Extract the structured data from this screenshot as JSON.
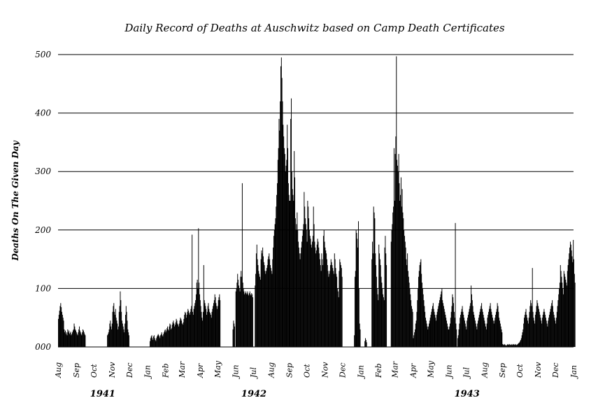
{
  "chart_data": {
    "type": "bar",
    "title": "Daily Record of Deaths at Auschwitz based on Camp Death Certificates",
    "ylabel": "Deaths On The Given Day",
    "xlabel": "",
    "ylim": [
      0,
      500
    ],
    "y_ticks": [
      "000",
      "100",
      "200",
      "300",
      "400",
      "500"
    ],
    "grid": true,
    "month_labels": [
      "Aug",
      "Sep",
      "Oct",
      "Nov",
      "Dec",
      "Jan",
      "Feb",
      "Mar",
      "Apr",
      "May",
      "Jun",
      "Jul",
      "Aug",
      "Sep",
      "Oct",
      "Nov",
      "Dec",
      "Jan",
      "Feb",
      "Mar",
      "Apr",
      "May",
      "Jun",
      "Jul",
      "Aug",
      "Sep",
      "Oct",
      "Nov",
      "Dec",
      "Jan"
    ],
    "year_labels": [
      "1941",
      "1942",
      "1943"
    ],
    "x_start": "1941-08",
    "x_end": "1944-01",
    "series": [
      {
        "segments": [
          {
            "start": "1941-08-01",
            "end": "1941-09-16",
            "values": [
              48,
              55,
              62,
              70,
              75,
              68,
              60,
              55,
              50,
              45,
              30,
              25,
              28,
              22,
              25,
              20,
              30,
              25,
              28,
              22,
              24,
              26,
              20,
              22,
              25,
              28,
              30,
              40,
              35,
              30,
              28,
              25,
              22,
              20,
              25,
              30,
              35,
              28,
              25,
              22,
              20,
              25,
              30,
              28,
              25,
              22,
              20
            ]
          },
          {
            "start": "1941-10-24",
            "end": "1941-11-30",
            "values": [
              20,
              22,
              25,
              30,
              40,
              45,
              35,
              30,
              40,
              60,
              70,
              75,
              60,
              55,
              65,
              50,
              45,
              40,
              30,
              35,
              60,
              70,
              95,
              80,
              60,
              45,
              40,
              35,
              30,
              25,
              40,
              55,
              70,
              60,
              45,
              30,
              25,
              20
            ]
          },
          {
            "start": "1942-01-05",
            "end": "1942-04-30",
            "values": [
              10,
              15,
              18,
              20,
              15,
              12,
              18,
              20,
              15,
              12,
              10,
              15,
              18,
              20,
              22,
              20,
              18,
              15,
              20,
              22,
              25,
              20,
              18,
              22,
              25,
              28,
              30,
              25,
              28,
              32,
              35,
              30,
              28,
              35,
              40,
              38,
              30,
              32,
              38,
              42,
              45,
              40,
              35,
              38,
              42,
              48,
              45,
              40,
              38,
              35,
              40,
              45,
              50,
              48,
              45,
              40,
              38,
              42,
              48,
              55,
              60,
              58,
              50,
              55,
              60,
              65,
              62,
              58,
              55,
              60,
              65,
              70,
              192,
              60,
              55,
              65,
              70,
              75,
              80,
              90,
              110,
              115,
              100,
              203,
              110,
              90,
              80,
              70,
              60,
              50,
              45,
              60,
              140,
              80,
              75,
              70,
              65,
              55,
              60,
              70,
              75,
              65,
              60,
              58,
              55,
              50,
              60,
              65,
              70,
              75,
              80,
              90,
              85,
              75,
              70,
              65,
              70,
              80,
              85,
              90,
              80
            ]
          },
          {
            "start": "1942-05-27",
            "end": "1942-05-30",
            "values": [
              30,
              45,
              40,
              35
            ]
          },
          {
            "start": "1942-06-01",
            "end": "1942-06-30",
            "values": [
              95,
              100,
              110,
              125,
              115,
              105,
              100,
              95,
              120,
              130,
              120,
              280,
              110,
              100,
              95,
              90,
              92,
              95,
              90,
              92,
              95,
              90,
              88,
              92,
              95,
              90,
              88,
              92,
              90,
              85
            ]
          },
          {
            "start": "1942-07-04",
            "end": "1942-08-31",
            "values": [
              105,
              125,
              160,
              175,
              150,
              140,
              130,
              125,
              120,
              115,
              150,
              165,
              160,
              170,
              155,
              145,
              140,
              130,
              125,
              130,
              135,
              140,
              150,
              155,
              160,
              150,
              140,
              135,
              130,
              125,
              150,
              170,
              190,
              200,
              210,
              220,
              240,
              260,
              280,
              320,
              340,
              390,
              370,
              420,
              480,
              495,
              460,
              420,
              380,
              360,
              340,
              330,
              300,
              310,
              320,
              380,
              340,
              280,
              260,
              250
            ]
          },
          {
            "start": "1942-09-01",
            "end": "1942-11-30",
            "values": [
              230,
              250,
              390,
              425,
              300,
              270,
              260,
              250,
              335,
              290,
              220,
              200,
              210,
              230,
              200,
              180,
              170,
              160,
              150,
              160,
              170,
              180,
              190,
              200,
              210,
              265,
              240,
              220,
              210,
              200,
              180,
              250,
              240,
              220,
              200,
              190,
              185,
              175,
              170,
              180,
              190,
              240,
              210,
              180,
              170,
              160,
              165,
              175,
              185,
              180,
              170,
              160,
              150,
              140,
              130,
              160,
              150,
              140,
              190,
              200,
              180,
              170,
              165,
              160,
              150,
              140,
              130,
              120,
              125,
              130,
              140,
              150,
              145,
              140,
              135,
              130,
              125,
              160,
              150,
              135,
              125,
              120,
              100,
              95,
              85,
              130,
              150,
              145,
              140,
              135,
              120
            ]
          },
          {
            "start": "1942-12-21",
            "end": "1942-12-31",
            "values": [
              20,
              120,
              130,
              200,
              195,
              185,
              170,
              215,
              100,
              40,
              30
            ]
          },
          {
            "start": "1943-01-08",
            "end": "1943-01-11",
            "values": [
              10,
              15,
              12,
              8
            ]
          },
          {
            "start": "1943-01-20",
            "end": "1943-02-14",
            "values": [
              150,
              180,
              160,
              240,
              230,
              220,
              160,
              140,
              120,
              100,
              90,
              80,
              175,
              160,
              150,
              140,
              120,
              110,
              100,
              90,
              85,
              80,
              170,
              190,
              160,
              140
            ]
          },
          {
            "start": "1943-02-22",
            "end": "1943-03-31",
            "values": [
              180,
              200,
              210,
              230,
              240,
              340,
              250,
              330,
              360,
              497,
              320,
              310,
              300,
              330,
              280,
              250,
              260,
              290,
              240,
              270,
              230,
              220,
              200,
              190,
              180,
              170,
              150,
              140,
              160,
              130,
              120,
              110,
              100,
              90,
              80,
              70,
              65,
              60
            ]
          },
          {
            "start": "1943-04-01",
            "end": "1943-05-31",
            "values": [
              15,
              20,
              25,
              30,
              40,
              45,
              60,
              80,
              100,
              120,
              130,
              140,
              145,
              150,
              125,
              110,
              100,
              90,
              80,
              70,
              60,
              50,
              45,
              40,
              35,
              30,
              35,
              40,
              45,
              50,
              55,
              60,
              65,
              70,
              75,
              65,
              60,
              55,
              50,
              45,
              55,
              60,
              65,
              70,
              75,
              80,
              85,
              90,
              95,
              100,
              80,
              75,
              70,
              65,
              60,
              55,
              50,
              45,
              40,
              35,
              30
            ]
          },
          {
            "start": "1943-06-01",
            "end": "1943-06-14",
            "values": [
              30,
              35,
              40,
              50,
              60,
              70,
              90,
              85,
              75,
              60,
              50,
              212,
              40,
              30
            ]
          },
          {
            "start": "1943-06-16",
            "end": "1943-08-31",
            "values": [
              15,
              20,
              30,
              40,
              50,
              55,
              60,
              65,
              70,
              60,
              55,
              50,
              45,
              40,
              35,
              30,
              45,
              50,
              55,
              60,
              65,
              70,
              75,
              105,
              90,
              80,
              70,
              60,
              55,
              50,
              45,
              40,
              35,
              30,
              40,
              45,
              50,
              55,
              60,
              65,
              70,
              75,
              65,
              60,
              55,
              50,
              45,
              40,
              35,
              30,
              40,
              50,
              55,
              60,
              65,
              70,
              75,
              65,
              60,
              55,
              50,
              45,
              40,
              45,
              50,
              55,
              60,
              65,
              75,
              70,
              60,
              50,
              45,
              40,
              35,
              30,
              25
            ]
          },
          {
            "start": "1943-09-01",
            "end": "1943-10-05",
            "values": [
              5,
              4,
              3,
              5,
              4,
              3,
              2,
              3,
              4,
              5,
              4,
              3,
              5,
              4,
              3,
              4,
              5,
              3,
              4,
              5,
              4,
              3,
              5,
              4,
              3,
              4,
              5,
              6,
              7,
              8,
              10,
              12,
              15,
              20,
              25
            ]
          },
          {
            "start": "1943-10-06",
            "end": "1943-12-31",
            "values": [
              30,
              40,
              50,
              55,
              60,
              65,
              55,
              50,
              45,
              40,
              50,
              60,
              70,
              80,
              75,
              70,
              135,
              60,
              50,
              45,
              40,
              55,
              60,
              70,
              80,
              75,
              70,
              65,
              60,
              55,
              50,
              45,
              40,
              50,
              55,
              60,
              65,
              60,
              55,
              50,
              45,
              40,
              35,
              45,
              50,
              55,
              60,
              65,
              70,
              75,
              80,
              70,
              60,
              55,
              50,
              45,
              40,
              50,
              60,
              70,
              80,
              90,
              100,
              110,
              140,
              130,
              120,
              110,
              100,
              90,
              130,
              125,
              120,
              115,
              110,
              105,
              130,
              140,
              150,
              160,
              170,
              180,
              175,
              165,
              155,
              145,
              183
            ]
          },
          {
            "start": "1944-01-01",
            "end": "1944-01-03",
            "values": [
              150,
              125,
              110
            ]
          }
        ]
      }
    ]
  }
}
